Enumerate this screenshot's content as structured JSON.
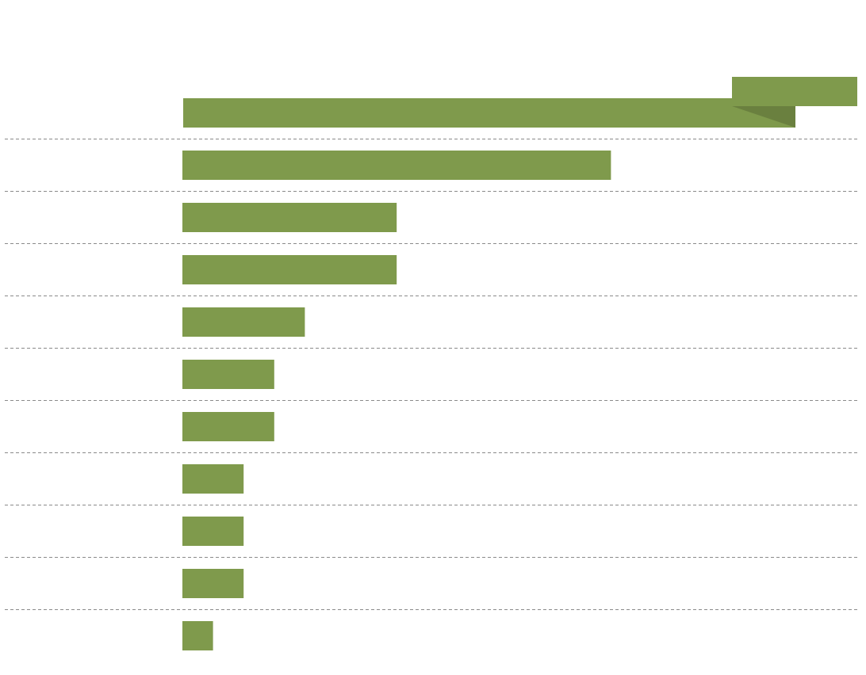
{
  "chart_data": {
    "type": "bar",
    "orientation": "horizontal",
    "categories": [
      null,
      null,
      null,
      null,
      null,
      null,
      null,
      null,
      null,
      null,
      null
    ],
    "values": [
      20,
      14,
      7,
      7,
      4,
      3,
      3,
      2,
      2,
      2,
      1
    ],
    "color": "#7f9a4c"
  }
}
